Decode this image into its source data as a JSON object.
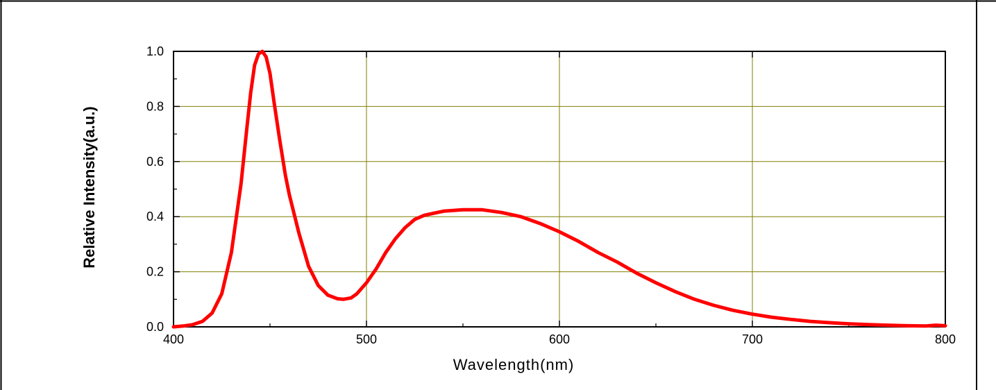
{
  "chart_data": {
    "type": "line",
    "title": "",
    "xlabel": "Wavelength(nm)",
    "ylabel": "Relative Intensity(a.u.)",
    "xlim": [
      400,
      800
    ],
    "ylim": [
      0,
      1.0
    ],
    "x_ticks": [
      "400",
      "500",
      "600",
      "700",
      "800"
    ],
    "y_ticks": [
      "0.0",
      "0.2",
      "0.4",
      "0.6",
      "0.8",
      "1.0"
    ],
    "grid": true,
    "grid_color": "#7f7f00",
    "series": [
      {
        "color": "#ff0000",
        "x": [
          400,
          405,
          410,
          415,
          420,
          425,
          430,
          435,
          438,
          440,
          442,
          444,
          446,
          448,
          450,
          452,
          455,
          458,
          460,
          465,
          470,
          475,
          480,
          485,
          488,
          492,
          495,
          500,
          505,
          510,
          515,
          520,
          525,
          530,
          540,
          550,
          560,
          570,
          580,
          590,
          600,
          610,
          620,
          630,
          640,
          650,
          660,
          670,
          680,
          690,
          700,
          710,
          720,
          730,
          740,
          750,
          760,
          770,
          780,
          790,
          795,
          800
        ],
        "y": [
          0.0,
          0.003,
          0.008,
          0.02,
          0.05,
          0.12,
          0.27,
          0.52,
          0.72,
          0.85,
          0.95,
          0.99,
          1.0,
          0.98,
          0.92,
          0.82,
          0.68,
          0.55,
          0.48,
          0.34,
          0.22,
          0.15,
          0.115,
          0.102,
          0.1,
          0.105,
          0.12,
          0.16,
          0.21,
          0.27,
          0.32,
          0.36,
          0.39,
          0.405,
          0.42,
          0.425,
          0.425,
          0.415,
          0.4,
          0.375,
          0.345,
          0.31,
          0.27,
          0.235,
          0.195,
          0.16,
          0.128,
          0.1,
          0.078,
          0.06,
          0.046,
          0.035,
          0.027,
          0.02,
          0.015,
          0.011,
          0.008,
          0.006,
          0.004,
          0.003,
          0.006,
          0.004
        ]
      }
    ]
  }
}
